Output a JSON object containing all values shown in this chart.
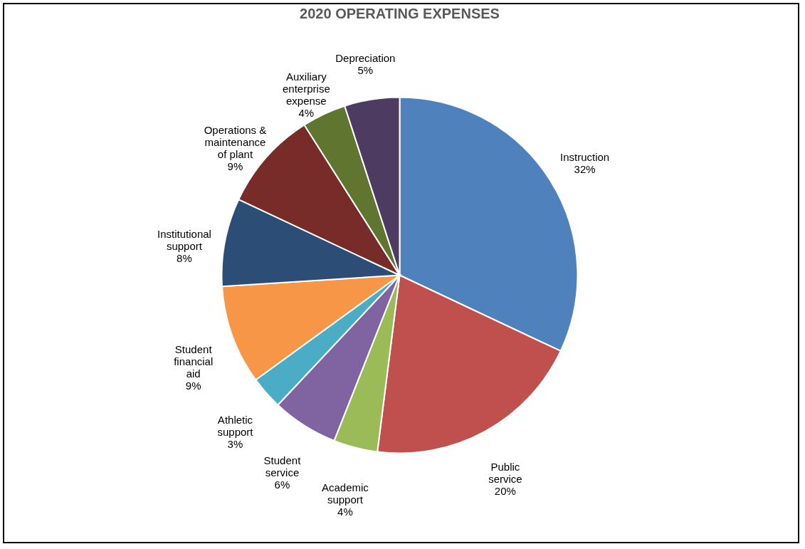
{
  "chart_data": {
    "type": "pie",
    "title": "2020 OPERATING EXPENSES",
    "categories": [
      "Instruction",
      "Public service",
      "Academic support",
      "Student service",
      "Athletic support",
      "Student financial aid",
      "Institutional support",
      "Operations & maintenance of plant",
      "Auxiliary enterprise expense",
      "Depreciation"
    ],
    "values": [
      32,
      20,
      4,
      6,
      3,
      9,
      8,
      9,
      4,
      5
    ],
    "value_labels": [
      "32%",
      "20%",
      "4%",
      "6%",
      "3%",
      "9%",
      "8%",
      "9%",
      "4%",
      "5%"
    ],
    "colors": [
      "#4f81bd",
      "#c0504d",
      "#9bbb59",
      "#8064a2",
      "#4bacc6",
      "#f79646",
      "#2c4d75",
      "#772c2a",
      "#5f7530",
      "#4d3b62"
    ],
    "legend": false
  }
}
